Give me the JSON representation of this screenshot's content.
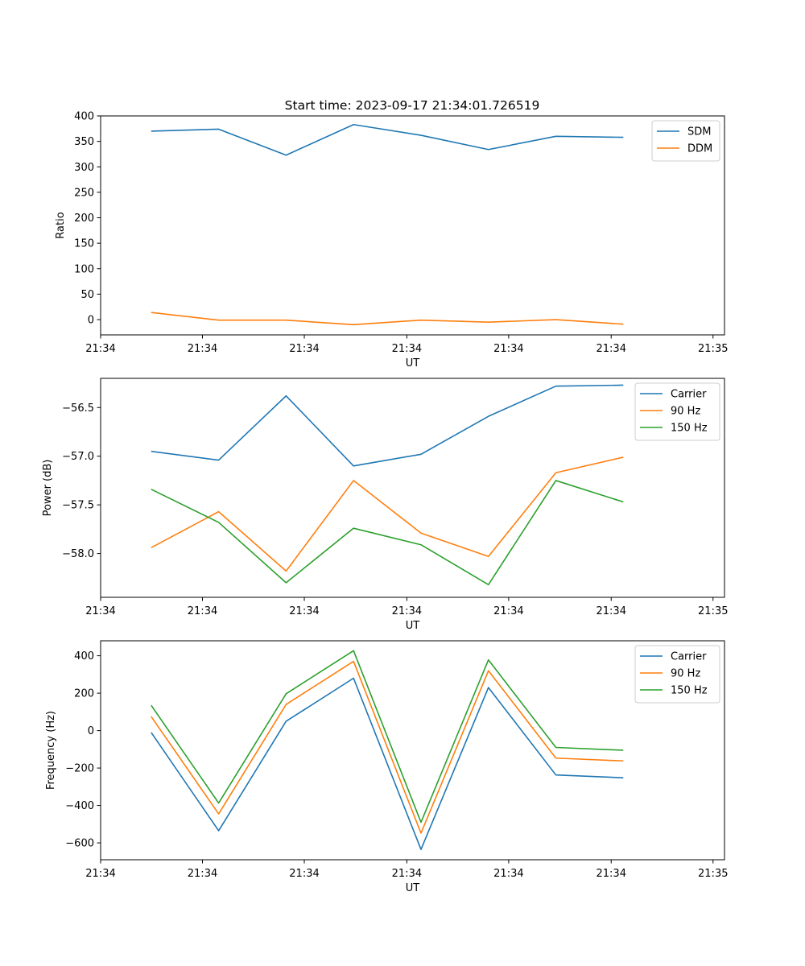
{
  "figure_title": "Start time: 2023-09-17 21:34:01.726519",
  "colors": {
    "C0": "#1f77b4",
    "C1": "#ff7f0e",
    "C2": "#2ca02c"
  },
  "chart_data": [
    {
      "type": "line",
      "title": "Start time: 2023-09-17 21:34:01.726519",
      "xlabel": "UT",
      "ylabel": "Ratio",
      "x": [
        0,
        1,
        2,
        3,
        4,
        5,
        6,
        7
      ],
      "xlim": [
        -0.75,
        8.5
      ],
      "xticks": [
        -0.75,
        0.76,
        2.27,
        3.79,
        5.3,
        6.82,
        8.33
      ],
      "xtick_labels": [
        "21:34",
        "21:34",
        "21:34",
        "21:34",
        "21:34",
        "21:34",
        "21:35"
      ],
      "ylim": [
        -30,
        400
      ],
      "yticks": [
        0,
        50,
        100,
        150,
        200,
        250,
        300,
        350,
        400
      ],
      "ytick_labels": [
        "0",
        "50",
        "100",
        "150",
        "200",
        "250",
        "300",
        "350",
        "400"
      ],
      "legend_position": "top-right",
      "series": [
        {
          "name": "SDM",
          "color": "#1f77b4",
          "values": [
            370,
            374,
            323,
            383,
            362,
            334,
            360,
            358
          ]
        },
        {
          "name": "DDM",
          "color": "#ff7f0e",
          "values": [
            14,
            -1,
            -1,
            -10,
            -1,
            -5,
            0,
            -9
          ]
        }
      ]
    },
    {
      "type": "line",
      "title": "",
      "xlabel": "UT",
      "ylabel": "Power (dB)",
      "x": [
        0,
        1,
        2,
        3,
        4,
        5,
        6,
        7
      ],
      "xlim": [
        -0.75,
        8.5
      ],
      "xticks": [
        -0.75,
        0.76,
        2.27,
        3.79,
        5.3,
        6.82,
        8.33
      ],
      "xtick_labels": [
        "21:34",
        "21:34",
        "21:34",
        "21:34",
        "21:34",
        "21:34",
        "21:35"
      ],
      "ylim": [
        -58.45,
        -56.2
      ],
      "yticks": [
        -58.0,
        -57.5,
        -57.0,
        -56.5
      ],
      "ytick_labels": [
        "−58.0",
        "−57.5",
        "−57.0",
        "−56.5"
      ],
      "legend_position": "top-right",
      "series": [
        {
          "name": "Carrier",
          "color": "#1f77b4",
          "values": [
            -56.95,
            -57.04,
            -56.38,
            -57.1,
            -56.98,
            -56.59,
            -56.28,
            -56.27
          ]
        },
        {
          "name": "90 Hz",
          "color": "#ff7f0e",
          "values": [
            -57.94,
            -57.57,
            -58.18,
            -57.25,
            -57.79,
            -58.03,
            -57.17,
            -57.01
          ]
        },
        {
          "name": "150 Hz",
          "color": "#2ca02c",
          "values": [
            -57.34,
            -57.68,
            -58.3,
            -57.74,
            -57.91,
            -58.32,
            -57.25,
            -57.47
          ]
        }
      ]
    },
    {
      "type": "line",
      "title": "",
      "xlabel": "UT",
      "ylabel": "Frequency (Hz)",
      "x": [
        0,
        1,
        2,
        3,
        4,
        5,
        6,
        7
      ],
      "xlim": [
        -0.75,
        8.5
      ],
      "xticks": [
        -0.75,
        0.76,
        2.27,
        3.79,
        5.3,
        6.82,
        8.33
      ],
      "xtick_labels": [
        "21:34",
        "21:34",
        "21:34",
        "21:34",
        "21:34",
        "21:34",
        "21:35"
      ],
      "ylim": [
        -690,
        480
      ],
      "yticks": [
        -600,
        -400,
        -200,
        0,
        200,
        400
      ],
      "ytick_labels": [
        "−600",
        "−400",
        "−200",
        "0",
        "200",
        "400"
      ],
      "legend_position": "top-right",
      "series": [
        {
          "name": "Carrier",
          "color": "#1f77b4",
          "values": [
            -10,
            -535,
            50,
            280,
            -635,
            230,
            -237,
            -252
          ]
        },
        {
          "name": "90 Hz",
          "color": "#ff7f0e",
          "values": [
            75,
            -445,
            140,
            370,
            -548,
            320,
            -147,
            -162
          ]
        },
        {
          "name": "150 Hz",
          "color": "#2ca02c",
          "values": [
            135,
            -387,
            197,
            427,
            -490,
            378,
            -90,
            -105
          ]
        }
      ]
    }
  ]
}
